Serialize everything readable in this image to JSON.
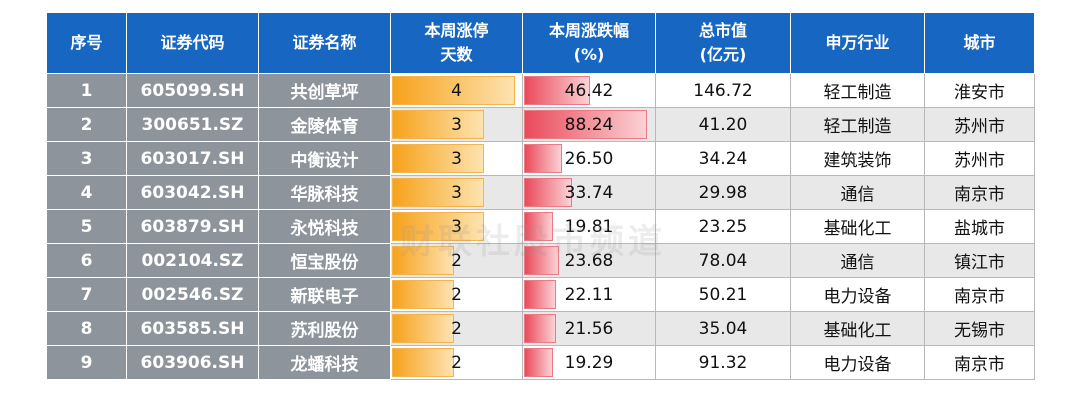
{
  "table": {
    "headers": [
      "序号",
      "证券代码",
      "证券名称",
      "本周涨停\n天数",
      "本周涨跌幅\n(%)",
      "总市值\n(亿元)",
      "申万行业",
      "城市"
    ],
    "rows": [
      [
        "1",
        "605099.SH",
        "共创草坪",
        "4",
        "46.42",
        "146.72",
        "轻工制造",
        "淮安市"
      ],
      [
        "2",
        "300651.SZ",
        "金陵体育",
        "3",
        "88.24",
        "41.20",
        "轻工制造",
        "苏州市"
      ],
      [
        "3",
        "603017.SH",
        "中衡设计",
        "3",
        "26.50",
        "34.24",
        "建筑装饰",
        "苏州市"
      ],
      [
        "4",
        "603042.SH",
        "华脉科技",
        "3",
        "33.74",
        "29.98",
        "通信",
        "南京市"
      ],
      [
        "5",
        "603879.SH",
        "永悦科技",
        "3",
        "19.81",
        "23.25",
        "基础化工",
        "盐城市"
      ],
      [
        "6",
        "002104.SZ",
        "恒宝股份",
        "2",
        "23.68",
        "78.04",
        "通信",
        "镇江市"
      ],
      [
        "7",
        "002546.SZ",
        "新联电子",
        "2",
        "22.11",
        "50.21",
        "电力设备",
        "南京市"
      ],
      [
        "8",
        "603585.SH",
        "苏利股份",
        "2",
        "21.56",
        "35.04",
        "基础化工",
        "无锡市"
      ],
      [
        "9",
        "603906.SH",
        "龙蟠科技",
        "2",
        "19.29",
        "91.32",
        "电力设备",
        "南京市"
      ]
    ]
  },
  "watermark": "财联社股市频道"
}
